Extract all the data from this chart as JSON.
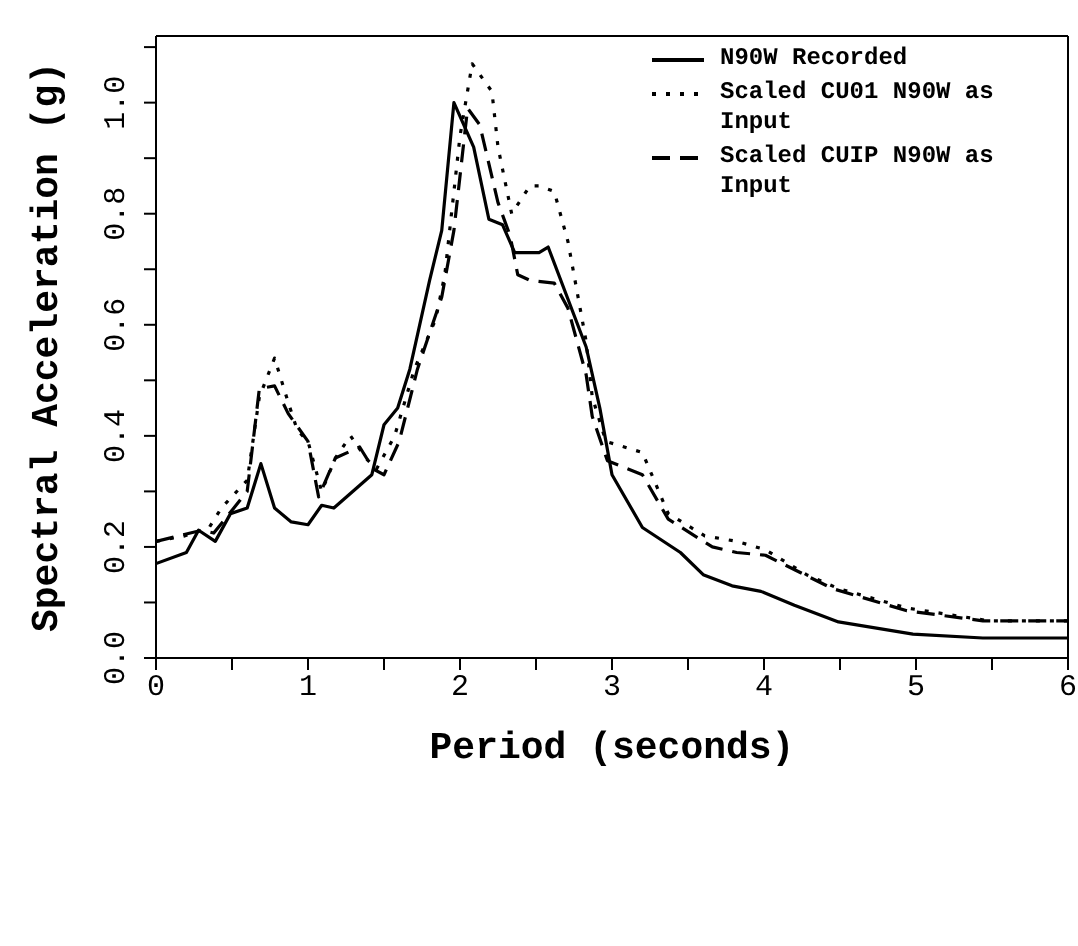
{
  "chart_data": {
    "type": "line",
    "xlabel": "Period (seconds)",
    "ylabel": "Spectral Acceleration (g)",
    "xlim": [
      0,
      6
    ],
    "xticks": [
      0,
      {
        "value": 0.5,
        "label": null
      },
      1,
      {
        "value": 1.5,
        "label": null
      },
      2,
      {
        "value": 2.5,
        "label": null
      },
      3,
      {
        "value": 3.5,
        "label": null
      },
      4,
      {
        "value": 4.5,
        "label": null
      },
      5,
      {
        "value": 5.5,
        "label": null
      },
      6
    ],
    "ylim": [
      0,
      1.12
    ],
    "yticks": [
      {
        "value": 0,
        "label": "0.0"
      },
      {
        "value": 0.1,
        "label": null
      },
      0.2,
      {
        "value": 0.3,
        "label": null
      },
      0.4,
      {
        "value": 0.5,
        "label": null
      },
      0.6,
      {
        "value": 0.7,
        "label": null
      },
      0.8,
      {
        "value": 0.9,
        "label": null
      },
      {
        "value": 1,
        "label": "1.0"
      },
      {
        "value": 1.1,
        "label": null
      }
    ],
    "legend": "top right",
    "marker": "none",
    "series": [
      {
        "name": "N90W Recorded",
        "color": "#000000",
        "line_style": "solid",
        "x": [
          0,
          0.2,
          0.28,
          0.39,
          0.49,
          0.6,
          0.69,
          0.78,
          0.89,
          1.0,
          1.09,
          1.17,
          1.42,
          1.5,
          1.59,
          1.67,
          1.8,
          1.88,
          1.96,
          2.09,
          2.19,
          2.28,
          2.36,
          2.52,
          2.58,
          2.83,
          2.92,
          3.0,
          3.2,
          3.45,
          3.6,
          3.79,
          3.98,
          4.2,
          4.49,
          4.98,
          5.44,
          6
        ],
        "values": [
          0.17,
          0.19,
          0.23,
          0.21,
          0.26,
          0.27,
          0.35,
          0.27,
          0.245,
          0.24,
          0.275,
          0.27,
          0.33,
          0.42,
          0.45,
          0.52,
          0.68,
          0.77,
          1.0,
          0.92,
          0.79,
          0.78,
          0.73,
          0.73,
          0.74,
          0.56,
          0.45,
          0.33,
          0.235,
          0.19,
          0.15,
          0.13,
          0.12,
          0.095,
          0.065,
          0.043,
          0.036,
          0.036
        ]
      },
      {
        "name": "Scaled CU01 N90W as Input",
        "color": "#000000",
        "line_style": "dotted",
        "x": [
          0,
          0.19,
          0.35,
          0.43,
          0.6,
          0.68,
          0.78,
          0.87,
          0.93,
          1.0,
          1.09,
          1.18,
          1.28,
          1.38,
          1.45,
          1.57,
          1.7,
          1.84,
          1.9,
          2.0,
          2.08,
          2.21,
          2.25,
          2.34,
          2.46,
          2.52,
          2.62,
          2.71,
          2.83,
          2.87,
          2.96,
          3.2,
          3.37,
          3.61,
          3.82,
          4.01,
          4.28,
          4.49,
          4.94,
          5.48,
          6
        ],
        "values": [
          0.21,
          0.22,
          0.235,
          0.27,
          0.32,
          0.47,
          0.54,
          0.46,
          0.41,
          0.39,
          0.3,
          0.36,
          0.4,
          0.36,
          0.34,
          0.4,
          0.52,
          0.61,
          0.69,
          0.94,
          1.07,
          1.02,
          0.92,
          0.8,
          0.85,
          0.85,
          0.84,
          0.75,
          0.57,
          0.47,
          0.39,
          0.37,
          0.26,
          0.22,
          0.21,
          0.195,
          0.15,
          0.125,
          0.09,
          0.067,
          0.067
        ]
      },
      {
        "name": "Scaled CUIP N90W as Input",
        "color": "#000000",
        "line_style": "dashed",
        "x": [
          0,
          0.3,
          0.38,
          0.6,
          0.68,
          0.78,
          0.87,
          1.0,
          1.07,
          1.18,
          1.34,
          1.43,
          1.5,
          1.6,
          1.72,
          1.88,
          1.96,
          2.05,
          2.13,
          2.25,
          2.33,
          2.38,
          2.46,
          2.62,
          2.71,
          2.83,
          2.87,
          2.97,
          3.2,
          3.37,
          3.66,
          3.82,
          4.01,
          4.45,
          4.94,
          5.44,
          6
        ],
        "values": [
          0.21,
          0.23,
          0.225,
          0.3,
          0.485,
          0.49,
          0.44,
          0.39,
          0.29,
          0.36,
          0.38,
          0.34,
          0.33,
          0.39,
          0.52,
          0.65,
          0.77,
          0.99,
          0.96,
          0.82,
          0.76,
          0.69,
          0.68,
          0.675,
          0.63,
          0.51,
          0.435,
          0.355,
          0.33,
          0.25,
          0.2,
          0.19,
          0.185,
          0.125,
          0.085,
          0.067,
          0.067
        ]
      }
    ]
  }
}
